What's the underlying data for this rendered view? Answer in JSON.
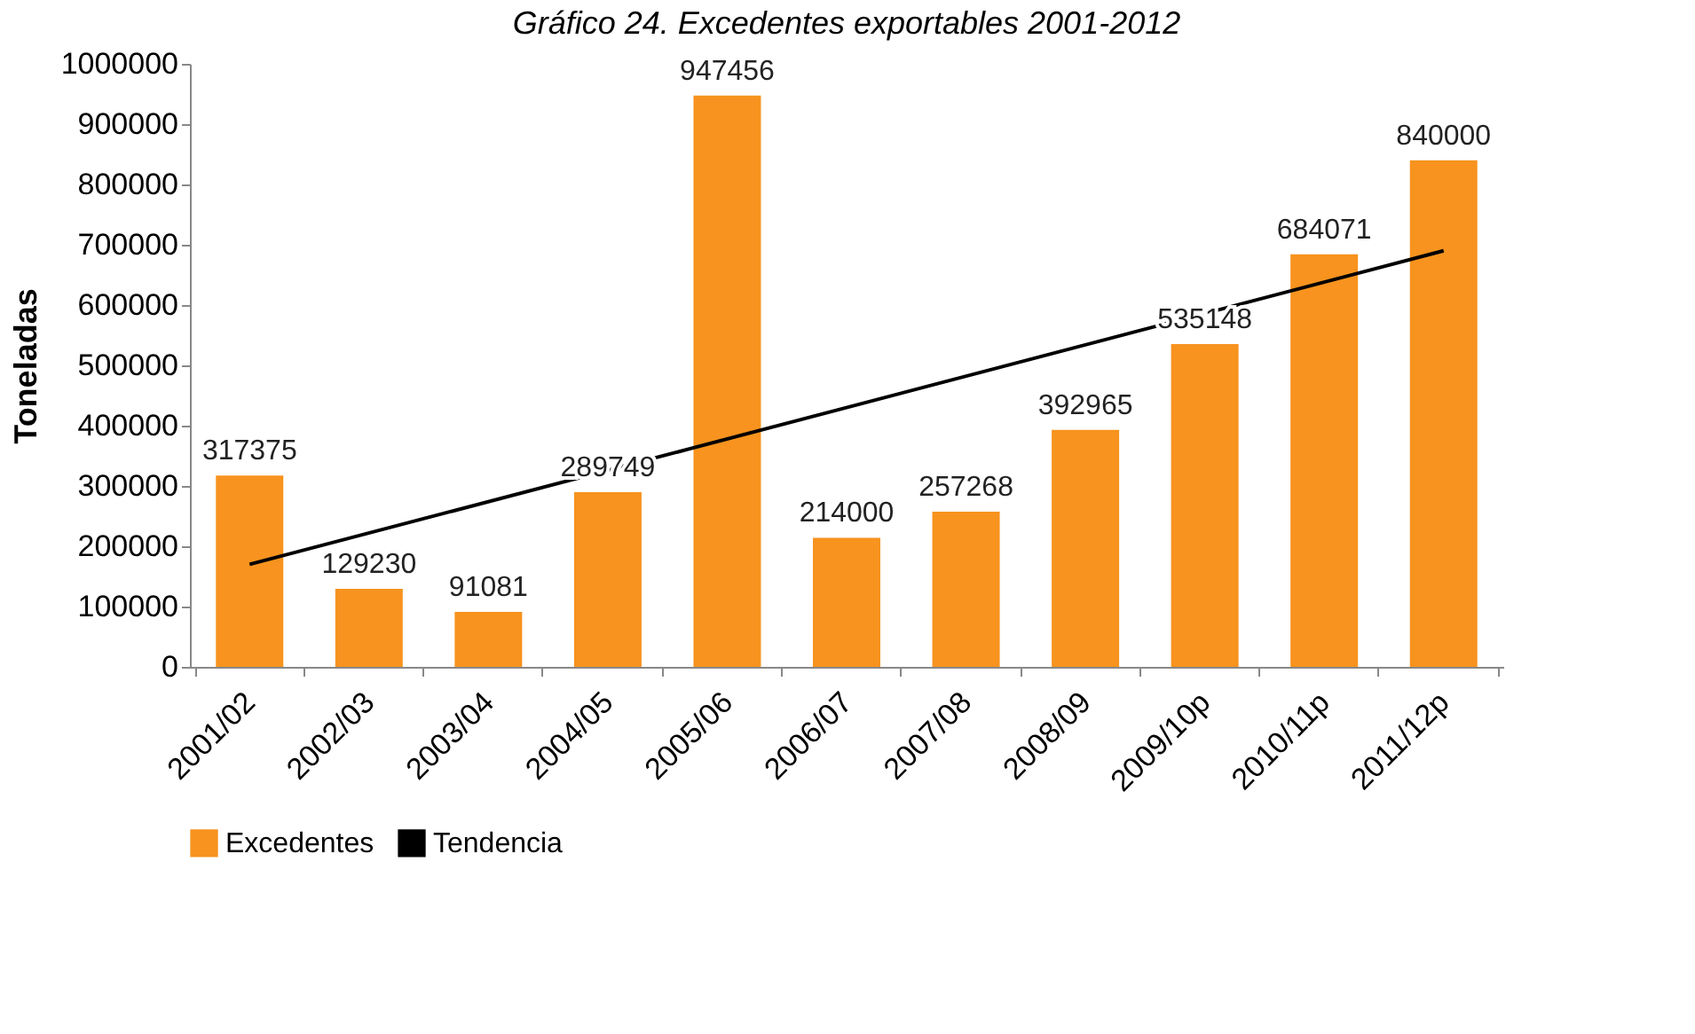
{
  "chart_data": {
    "type": "bar",
    "title": "Gráfico 24. Excedentes exportables 2001-2012",
    "ylabel": "Toneladas",
    "categories": [
      "2001/02",
      "2002/03",
      "2003/04",
      "2004/05",
      "2005/06",
      "2006/07",
      "2007/08",
      "2008/09",
      "2009/10p",
      "2010/11p",
      "2011/12p"
    ],
    "series": [
      {
        "name": "Excedentes",
        "color": "#f7931e",
        "values": [
          317375,
          129230,
          91081,
          289749,
          947456,
          214000,
          257268,
          392965,
          535148,
          684071,
          840000
        ],
        "value_labels": [
          "317375",
          "129230",
          "91081",
          "289749",
          "947456",
          "214000",
          "257268",
          "392965",
          "535148",
          "684071",
          "840000"
        ]
      },
      {
        "name": "Tendencia",
        "type": "line",
        "color": "#000000",
        "x": [
          "2001/02",
          "2011/12p"
        ],
        "values": [
          170000,
          690000
        ]
      }
    ],
    "ylim": [
      0,
      1000000
    ],
    "yticks": [
      0,
      100000,
      200000,
      300000,
      400000,
      500000,
      600000,
      700000,
      800000,
      900000,
      1000000
    ],
    "grid": false,
    "legend": "bottom"
  }
}
